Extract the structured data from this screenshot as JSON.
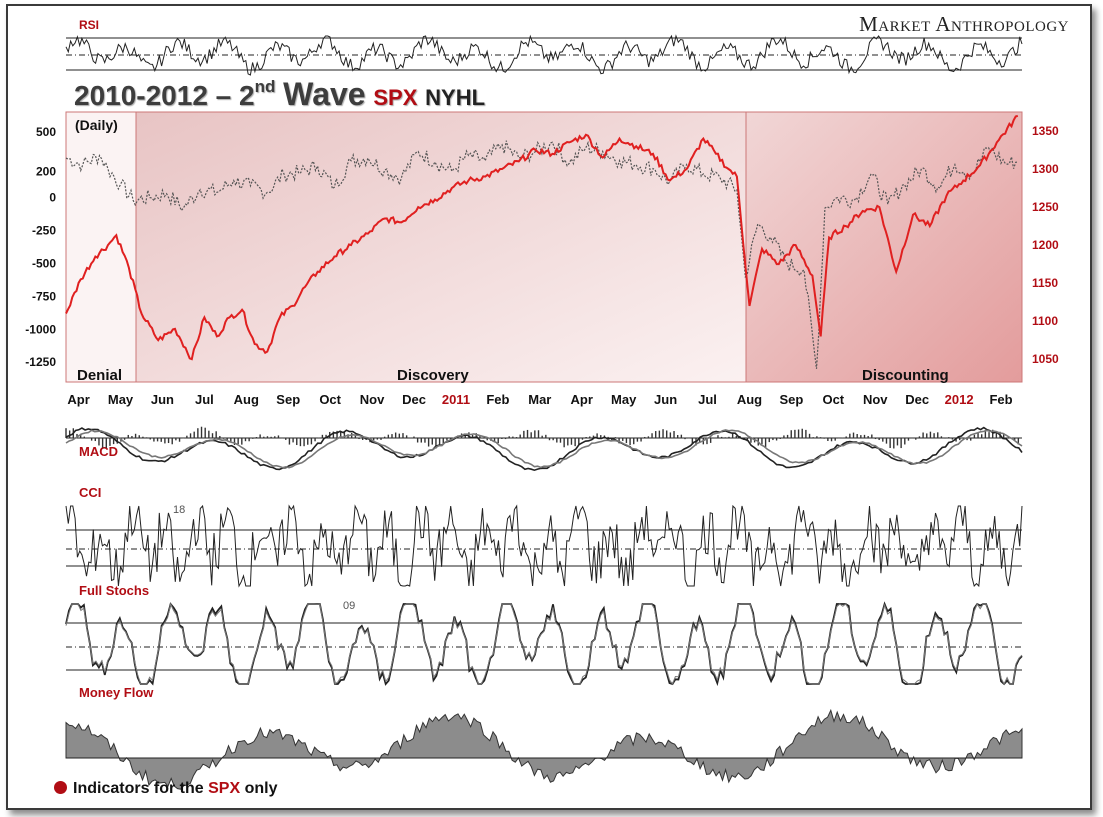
{
  "header": {
    "brand": "Market Anthropology",
    "title_years": "2010-2012 – 2",
    "title_sup": "nd",
    "title_wave": "Wave",
    "title_spx": "SPX",
    "title_nyhl": "NYHL",
    "daily": "(Daily)"
  },
  "panels": {
    "rsi": "RSI",
    "macd": "MACD",
    "cci": "CCI",
    "cci_marker": "18",
    "stochs": "Full Stochs",
    "stochs_marker": "09",
    "money_flow": "Money Flow"
  },
  "phases": {
    "denial": "Denial",
    "discovery": "Discovery",
    "discounting": "Discounting"
  },
  "footer": {
    "prefix": "Indicators for the ",
    "spx": "SPX",
    "suffix": " only"
  },
  "colors": {
    "accent_red": "#b10d14",
    "spx_line": "#e02020",
    "nyhl_line": "#555555",
    "money_fill": "#8c8c8c"
  },
  "chart_data": {
    "type": "line",
    "x_ticks": [
      "Apr",
      "May",
      "Jun",
      "Jul",
      "Aug",
      "Sep",
      "Oct",
      "Nov",
      "Dec",
      "2011",
      "Feb",
      "Mar",
      "Apr",
      "May",
      "Jun",
      "Jul",
      "Aug",
      "Sep",
      "Oct",
      "Nov",
      "Dec",
      "2012",
      "Feb"
    ],
    "x_ticks_red": [
      "2011",
      "2012"
    ],
    "left_axis": {
      "ticks": [
        "500",
        "200",
        "0",
        "-250",
        "-500",
        "-750",
        "-1000",
        "-1250"
      ],
      "ylim": [
        -1400,
        650
      ]
    },
    "right_axis": {
      "ticks": [
        "1350",
        "1300",
        "1250",
        "1200",
        "1150",
        "1100",
        "1050"
      ],
      "ylim": [
        1020,
        1375
      ]
    },
    "series": [
      {
        "name": "SPX",
        "axis": "right",
        "x": [
          0,
          0.35,
          0.7,
          1,
          1.2,
          1.5,
          1.8,
          2.2,
          2.6,
          3.0,
          3.3,
          3.6,
          3.9,
          4.2,
          4.5,
          4.8,
          5.1,
          5.4,
          5.7,
          6.0,
          6.4,
          6.8,
          7.2,
          7.6,
          8.0,
          8.4,
          8.8,
          9.2,
          9.6,
          10.0,
          10.4,
          10.8,
          11.2,
          11.6,
          12.0,
          12.4,
          12.8,
          13.2,
          13.6,
          14.0,
          14.4,
          14.8,
          15.2,
          15.5,
          15.8,
          16.0,
          16.3,
          16.6,
          17.0,
          17.4,
          17.8,
          18.0,
          18.2,
          18.6,
          19.0,
          19.4,
          19.8,
          20.2,
          20.6,
          21.0,
          21.4,
          21.8,
          22.2,
          22.7
        ],
        "values": [
          1110,
          1155,
          1185,
          1200,
          1213,
          1170,
          1110,
          1075,
          1090,
          1050,
          1105,
          1080,
          1105,
          1115,
          1070,
          1060,
          1105,
          1120,
          1145,
          1165,
          1185,
          1200,
          1215,
          1235,
          1230,
          1250,
          1260,
          1275,
          1285,
          1290,
          1300,
          1310,
          1325,
          1320,
          1335,
          1345,
          1315,
          1340,
          1330,
          1320,
          1285,
          1300,
          1340,
          1320,
          1300,
          1290,
          1120,
          1195,
          1175,
          1200,
          1160,
          1080,
          1210,
          1225,
          1245,
          1250,
          1165,
          1240,
          1225,
          1265,
          1285,
          1305,
          1335,
          1370
        ]
      },
      {
        "name": "NYHL",
        "axis": "left",
        "x": [
          0,
          0.4,
          0.8,
          1,
          1.3,
          1.6,
          2.0,
          2.4,
          2.8,
          3.2,
          3.6,
          4.0,
          4.4,
          4.8,
          5.2,
          5.6,
          6.0,
          6.4,
          6.8,
          7.2,
          7.6,
          8.0,
          8.4,
          8.8,
          9.2,
          9.6,
          10.0,
          10.4,
          10.8,
          11.2,
          11.6,
          12.0,
          12.4,
          12.8,
          13.2,
          13.6,
          14.0,
          14.4,
          14.8,
          15.2,
          15.6,
          16.0,
          16.2,
          16.5,
          16.8,
          17.2,
          17.6,
          17.9,
          18.1,
          18.4,
          18.8,
          19.2,
          19.6,
          20.0,
          20.4,
          20.8,
          21.2,
          21.6,
          22.0,
          22.4,
          22.7
        ],
        "values": [
          300,
          250,
          320,
          220,
          100,
          -20,
          0,
          30,
          -80,
          60,
          40,
          130,
          90,
          40,
          180,
          190,
          240,
          80,
          280,
          300,
          210,
          150,
          350,
          270,
          200,
          320,
          280,
          400,
          300,
          350,
          420,
          260,
          380,
          350,
          280,
          250,
          220,
          120,
          250,
          180,
          150,
          60,
          -600,
          -200,
          -300,
          -500,
          -550,
          -1300,
          -80,
          0,
          -20,
          180,
          -50,
          100,
          220,
          80,
          250,
          180,
          380,
          260,
          270
        ]
      }
    ],
    "phases": [
      {
        "name": "Denial",
        "from": 0,
        "to": 1.7
      },
      {
        "name": "Discovery",
        "from": 1.7,
        "to": 16.1
      },
      {
        "name": "Discounting",
        "from": 16.1,
        "to": 22.8
      }
    ]
  }
}
